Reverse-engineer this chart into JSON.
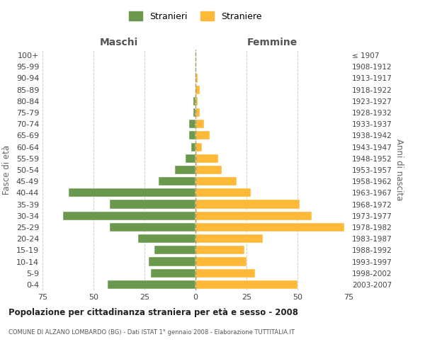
{
  "age_groups": [
    "0-4",
    "5-9",
    "10-14",
    "15-19",
    "20-24",
    "25-29",
    "30-34",
    "35-39",
    "40-44",
    "45-49",
    "50-54",
    "55-59",
    "60-64",
    "65-69",
    "70-74",
    "75-79",
    "80-84",
    "85-89",
    "90-94",
    "95-99",
    "100+"
  ],
  "birth_years": [
    "2003-2007",
    "1998-2002",
    "1993-1997",
    "1988-1992",
    "1983-1987",
    "1978-1982",
    "1973-1977",
    "1968-1972",
    "1963-1967",
    "1958-1962",
    "1953-1957",
    "1948-1952",
    "1943-1947",
    "1938-1942",
    "1933-1937",
    "1928-1932",
    "1923-1927",
    "1918-1922",
    "1913-1917",
    "1908-1912",
    "≤ 1907"
  ],
  "maschi": [
    43,
    22,
    23,
    20,
    28,
    42,
    65,
    42,
    62,
    18,
    10,
    5,
    2,
    3,
    3,
    1,
    1,
    0,
    0,
    0,
    0
  ],
  "femmine": [
    50,
    29,
    25,
    24,
    33,
    73,
    57,
    51,
    27,
    20,
    13,
    11,
    3,
    7,
    4,
    2,
    1,
    2,
    1,
    0,
    0
  ],
  "color_maschi": "#6a994e",
  "color_femmine": "#ffb938",
  "title": "Popolazione per cittadinanza straniera per età e sesso - 2008",
  "subtitle": "COMUNE DI ALZANO LOMBARDO (BG) - Dati ISTAT 1° gennaio 2008 - Elaborazione TUTTITALIA.IT",
  "xlabel_left": "Maschi",
  "xlabel_right": "Femmine",
  "ylabel_left": "Fasce di età",
  "ylabel_right": "Anni di nascita",
  "xlim": 75,
  "legend_maschi": "Stranieri",
  "legend_femmine": "Straniere",
  "background_color": "#ffffff",
  "grid_color": "#cccccc"
}
